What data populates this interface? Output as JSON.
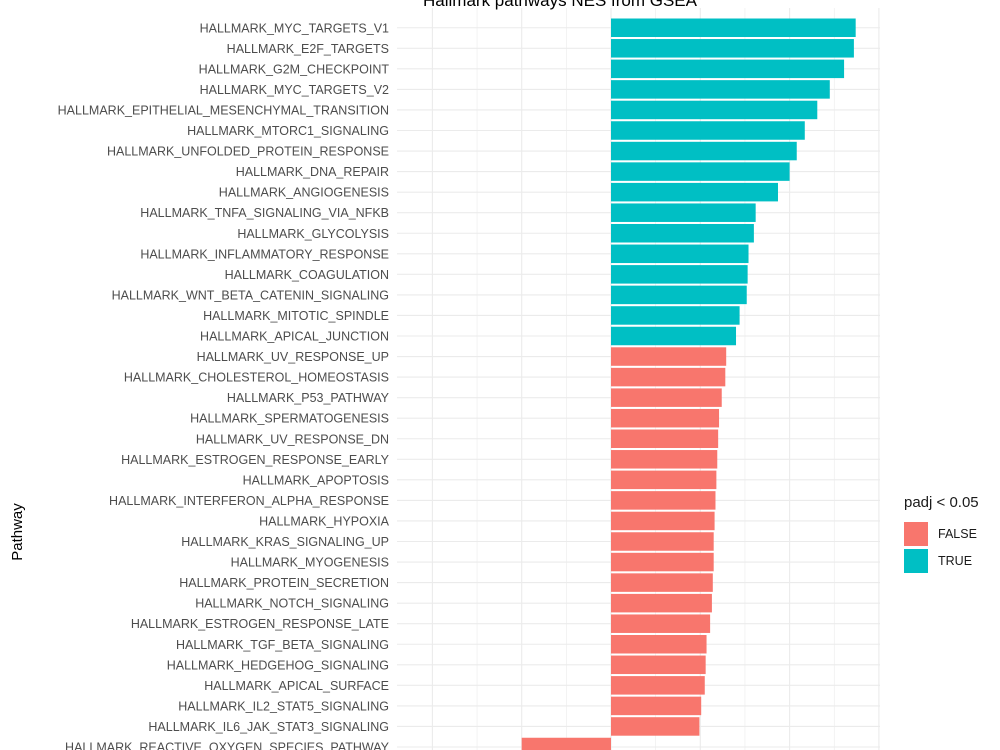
{
  "colors": {
    "FALSE": "#F8766D",
    "TRUE": "#00BFC4",
    "grid": "#ebebeb",
    "text": "#4d4d4d"
  },
  "legend": {
    "title": "padj < 0.05",
    "items": [
      {
        "label": "FALSE",
        "color": "#F8766D"
      },
      {
        "label": "TRUE",
        "color": "#00BFC4"
      }
    ]
  },
  "chart_data": {
    "type": "bar",
    "orientation": "horizontal",
    "title": "Hallmark pathways NES from GSEA",
    "ylabel": "Pathway",
    "grid": true,
    "legend_position": "right",
    "categories": [
      "HALLMARK_MYC_TARGETS_V1",
      "HALLMARK_E2F_TARGETS",
      "HALLMARK_G2M_CHECKPOINT",
      "HALLMARK_MYC_TARGETS_V2",
      "HALLMARK_EPITHELIAL_MESENCHYMAL_TRANSITION",
      "HALLMARK_MTORC1_SIGNALING",
      "HALLMARK_UNFOLDED_PROTEIN_RESPONSE",
      "HALLMARK_DNA_REPAIR",
      "HALLMARK_ANGIOGENESIS",
      "HALLMARK_TNFA_SIGNALING_VIA_NFKB",
      "HALLMARK_GLYCOLYSIS",
      "HALLMARK_INFLAMMATORY_RESPONSE",
      "HALLMARK_COAGULATION",
      "HALLMARK_WNT_BETA_CATENIN_SIGNALING",
      "HALLMARK_MITOTIC_SPINDLE",
      "HALLMARK_APICAL_JUNCTION",
      "HALLMARK_UV_RESPONSE_UP",
      "HALLMARK_CHOLESTEROL_HOMEOSTASIS",
      "HALLMARK_P53_PATHWAY",
      "HALLMARK_SPERMATOGENESIS",
      "HALLMARK_UV_RESPONSE_DN",
      "HALLMARK_ESTROGEN_RESPONSE_EARLY",
      "HALLMARK_APOPTOSIS",
      "HALLMARK_INTERFERON_ALPHA_RESPONSE",
      "HALLMARK_HYPOXIA",
      "HALLMARK_KRAS_SIGNALING_UP",
      "HALLMARK_MYOGENESIS",
      "HALLMARK_PROTEIN_SECRETION",
      "HALLMARK_NOTCH_SIGNALING",
      "HALLMARK_ESTROGEN_RESPONSE_LATE",
      "HALLMARK_TGF_BETA_SIGNALING",
      "HALLMARK_HEDGEHOG_SIGNALING",
      "HALLMARK_APICAL_SURFACE",
      "HALLMARK_IL2_STAT5_SIGNALING",
      "HALLMARK_IL6_JAK_STAT3_SIGNALING",
      "HALLMARK_REACTIVE_OXYGEN_SPECIES_PATHWAY"
    ],
    "values": [
      2.74,
      2.72,
      2.61,
      2.45,
      2.31,
      2.17,
      2.08,
      2.0,
      1.87,
      1.62,
      1.6,
      1.54,
      1.53,
      1.52,
      1.44,
      1.4,
      1.29,
      1.28,
      1.24,
      1.21,
      1.2,
      1.19,
      1.18,
      1.17,
      1.16,
      1.15,
      1.15,
      1.14,
      1.13,
      1.11,
      1.07,
      1.06,
      1.05,
      1.01,
      0.99,
      -1.0
    ],
    "significant": [
      true,
      true,
      true,
      true,
      true,
      true,
      true,
      true,
      true,
      true,
      true,
      true,
      true,
      true,
      true,
      true,
      false,
      false,
      false,
      false,
      false,
      false,
      false,
      false,
      false,
      false,
      false,
      false,
      false,
      false,
      false,
      false,
      false,
      false,
      false,
      false
    ],
    "xlim": [
      -2.0,
      3.0
    ]
  }
}
